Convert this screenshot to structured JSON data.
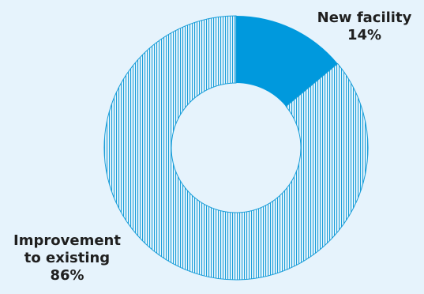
{
  "chart_data": {
    "type": "pie",
    "donut": true,
    "title": "",
    "slices": [
      {
        "label_lines": [
          "New facility"
        ],
        "value": 14,
        "value_text": "14%",
        "color": "#0099dd",
        "pattern": "solid"
      },
      {
        "label_lines": [
          "Improvement",
          "to existing"
        ],
        "value": 86,
        "value_text": "86%",
        "color": "#1a9ed9",
        "pattern": "vertical-stripes"
      }
    ],
    "start_angle_deg": 0,
    "direction": "clockwise",
    "background": "#e6f3fc"
  }
}
